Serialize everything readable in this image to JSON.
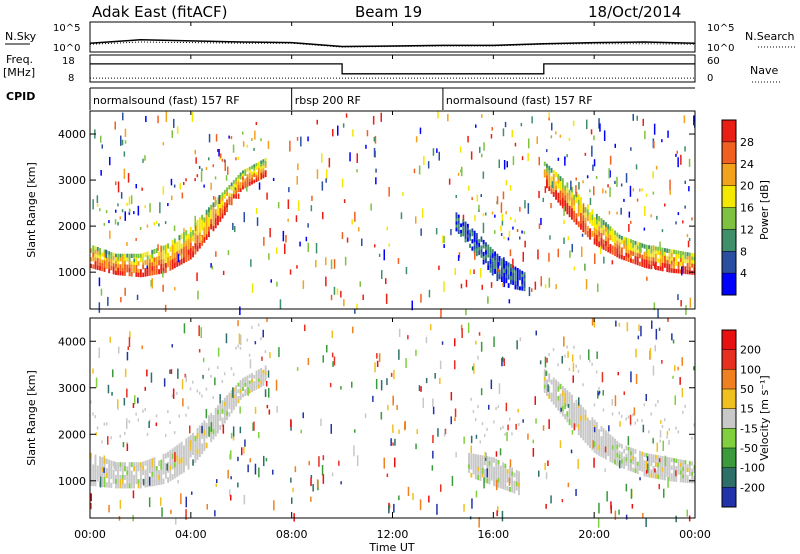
{
  "header": {
    "radar": "Adak East (fitACF)",
    "beam": "Beam 19",
    "date": "18/Oct/2014"
  },
  "chart_data": [
    {
      "type": "line",
      "panel": "noise",
      "left_label": "N.Sky",
      "right_label": "N.Search",
      "left_ticks": [
        "10^5",
        "10^0"
      ],
      "right_ticks": [
        "10^5",
        "10^0"
      ],
      "x": [
        0,
        2,
        4,
        6,
        8,
        10,
        12,
        14,
        16,
        18,
        20,
        22,
        24
      ],
      "sky_log10": [
        1.4,
        2.0,
        1.8,
        1.6,
        1.5,
        0.8,
        0.9,
        1.0,
        1.0,
        1.3,
        1.5,
        1.6,
        1.4
      ],
      "search_log10": [
        1.2,
        1.6,
        1.5,
        1.4,
        1.4,
        0.7,
        0.8,
        0.9,
        0.9,
        1.2,
        1.3,
        1.3,
        1.2
      ]
    },
    {
      "type": "line",
      "panel": "frequency",
      "left_label": "Freq.",
      "left_unit": "[MHz]",
      "right_label": "Nave",
      "left_ticks": [
        "18",
        "8"
      ],
      "right_ticks": [
        "60",
        "0"
      ],
      "freq_steps": [
        {
          "start": 0,
          "end": 10,
          "mhz": 15
        },
        {
          "start": 10,
          "end": 18,
          "mhz": 10.7
        },
        {
          "start": 18,
          "end": 24,
          "mhz": 15
        }
      ],
      "nave_level": 5
    },
    {
      "type": "table",
      "panel": "cpid",
      "label": "CPID",
      "segments": [
        {
          "start": 0,
          "end": 8,
          "text": "normalsound (fast) 157 RF"
        },
        {
          "start": 8,
          "end": 14,
          "text": "rbsp 200 RF"
        },
        {
          "start": 14,
          "end": 24,
          "text": "normalsound (fast) 157 RF"
        }
      ]
    },
    {
      "type": "heatmap",
      "panel": "power",
      "ylabel": "Slant Range [km]",
      "ylim": [
        200,
        4500
      ],
      "yticks": [
        1000,
        2000,
        3000,
        4000
      ],
      "colorbar_label": "Power [dB]",
      "colorbar_ticks": [
        "4",
        "8",
        "12",
        "16",
        "20",
        "24",
        "28"
      ],
      "colors": [
        "#0000ff",
        "#2a4fa0",
        "#3f8f6a",
        "#7fc241",
        "#f4e700",
        "#f3a21d",
        "#f06020",
        "#e91e14"
      ],
      "bands": [
        {
          "start": 0.0,
          "end": 7.0,
          "lower_km": [
            1100,
            950,
            900,
            1000,
            1300,
            2000,
            2800,
            3100
          ],
          "upper_km": [
            1600,
            1400,
            1400,
            1600,
            2000,
            2600,
            3200,
            3500
          ],
          "peak_db": 28
        },
        {
          "start": 18.0,
          "end": 24.0,
          "lower_km": [
            2900,
            2200,
            1600,
            1300,
            1100,
            1000,
            950
          ],
          "upper_km": [
            3400,
            2900,
            2300,
            1800,
            1600,
            1500,
            1400
          ],
          "peak_db": 26
        },
        {
          "start": 14.5,
          "end": 17.2,
          "lower_km": [
            1900,
            1300,
            700,
            600
          ],
          "upper_km": [
            2300,
            1800,
            1300,
            1000
          ],
          "peak_db": 10
        }
      ]
    },
    {
      "type": "heatmap",
      "panel": "velocity",
      "ylabel": "Slant Range [km]",
      "ylim": [
        200,
        4500
      ],
      "yticks": [
        1000,
        2000,
        3000,
        4000
      ],
      "colorbar_label": "Velocity [m s⁻¹]",
      "colorbar_ticks": [
        "200",
        "100",
        "50",
        "15",
        "-15",
        "-50",
        "-100",
        "-200"
      ],
      "colors": [
        "#2233aa",
        "#2f6f6a",
        "#3b9a3b",
        "#7fcf3f",
        "#c8c8c8",
        "#f0c020",
        "#f08020",
        "#e83020",
        "#e81010"
      ],
      "bands": [
        {
          "start": 0.0,
          "end": 7.0,
          "lower_km": [
            900,
            850,
            850,
            950,
            1300,
            2000,
            2800,
            3100
          ],
          "upper_km": [
            1600,
            1400,
            1400,
            1600,
            2000,
            2600,
            3200,
            3500
          ],
          "velocity": 0
        },
        {
          "start": 18.0,
          "end": 24.0,
          "lower_km": [
            2900,
            2200,
            1600,
            1300,
            1100,
            1000,
            950
          ],
          "upper_km": [
            3400,
            2900,
            2300,
            1800,
            1600,
            1500,
            1400
          ],
          "velocity": 0
        },
        {
          "start": 15.0,
          "end": 17.0,
          "lower_km": [
            1100,
            900,
            700
          ],
          "upper_km": [
            1600,
            1500,
            1200
          ],
          "velocity": 0
        }
      ]
    }
  ],
  "xaxis": {
    "label": "Time UT",
    "ticks": [
      "00:00",
      "04:00",
      "08:00",
      "12:00",
      "16:00",
      "20:00",
      "00:00"
    ]
  }
}
